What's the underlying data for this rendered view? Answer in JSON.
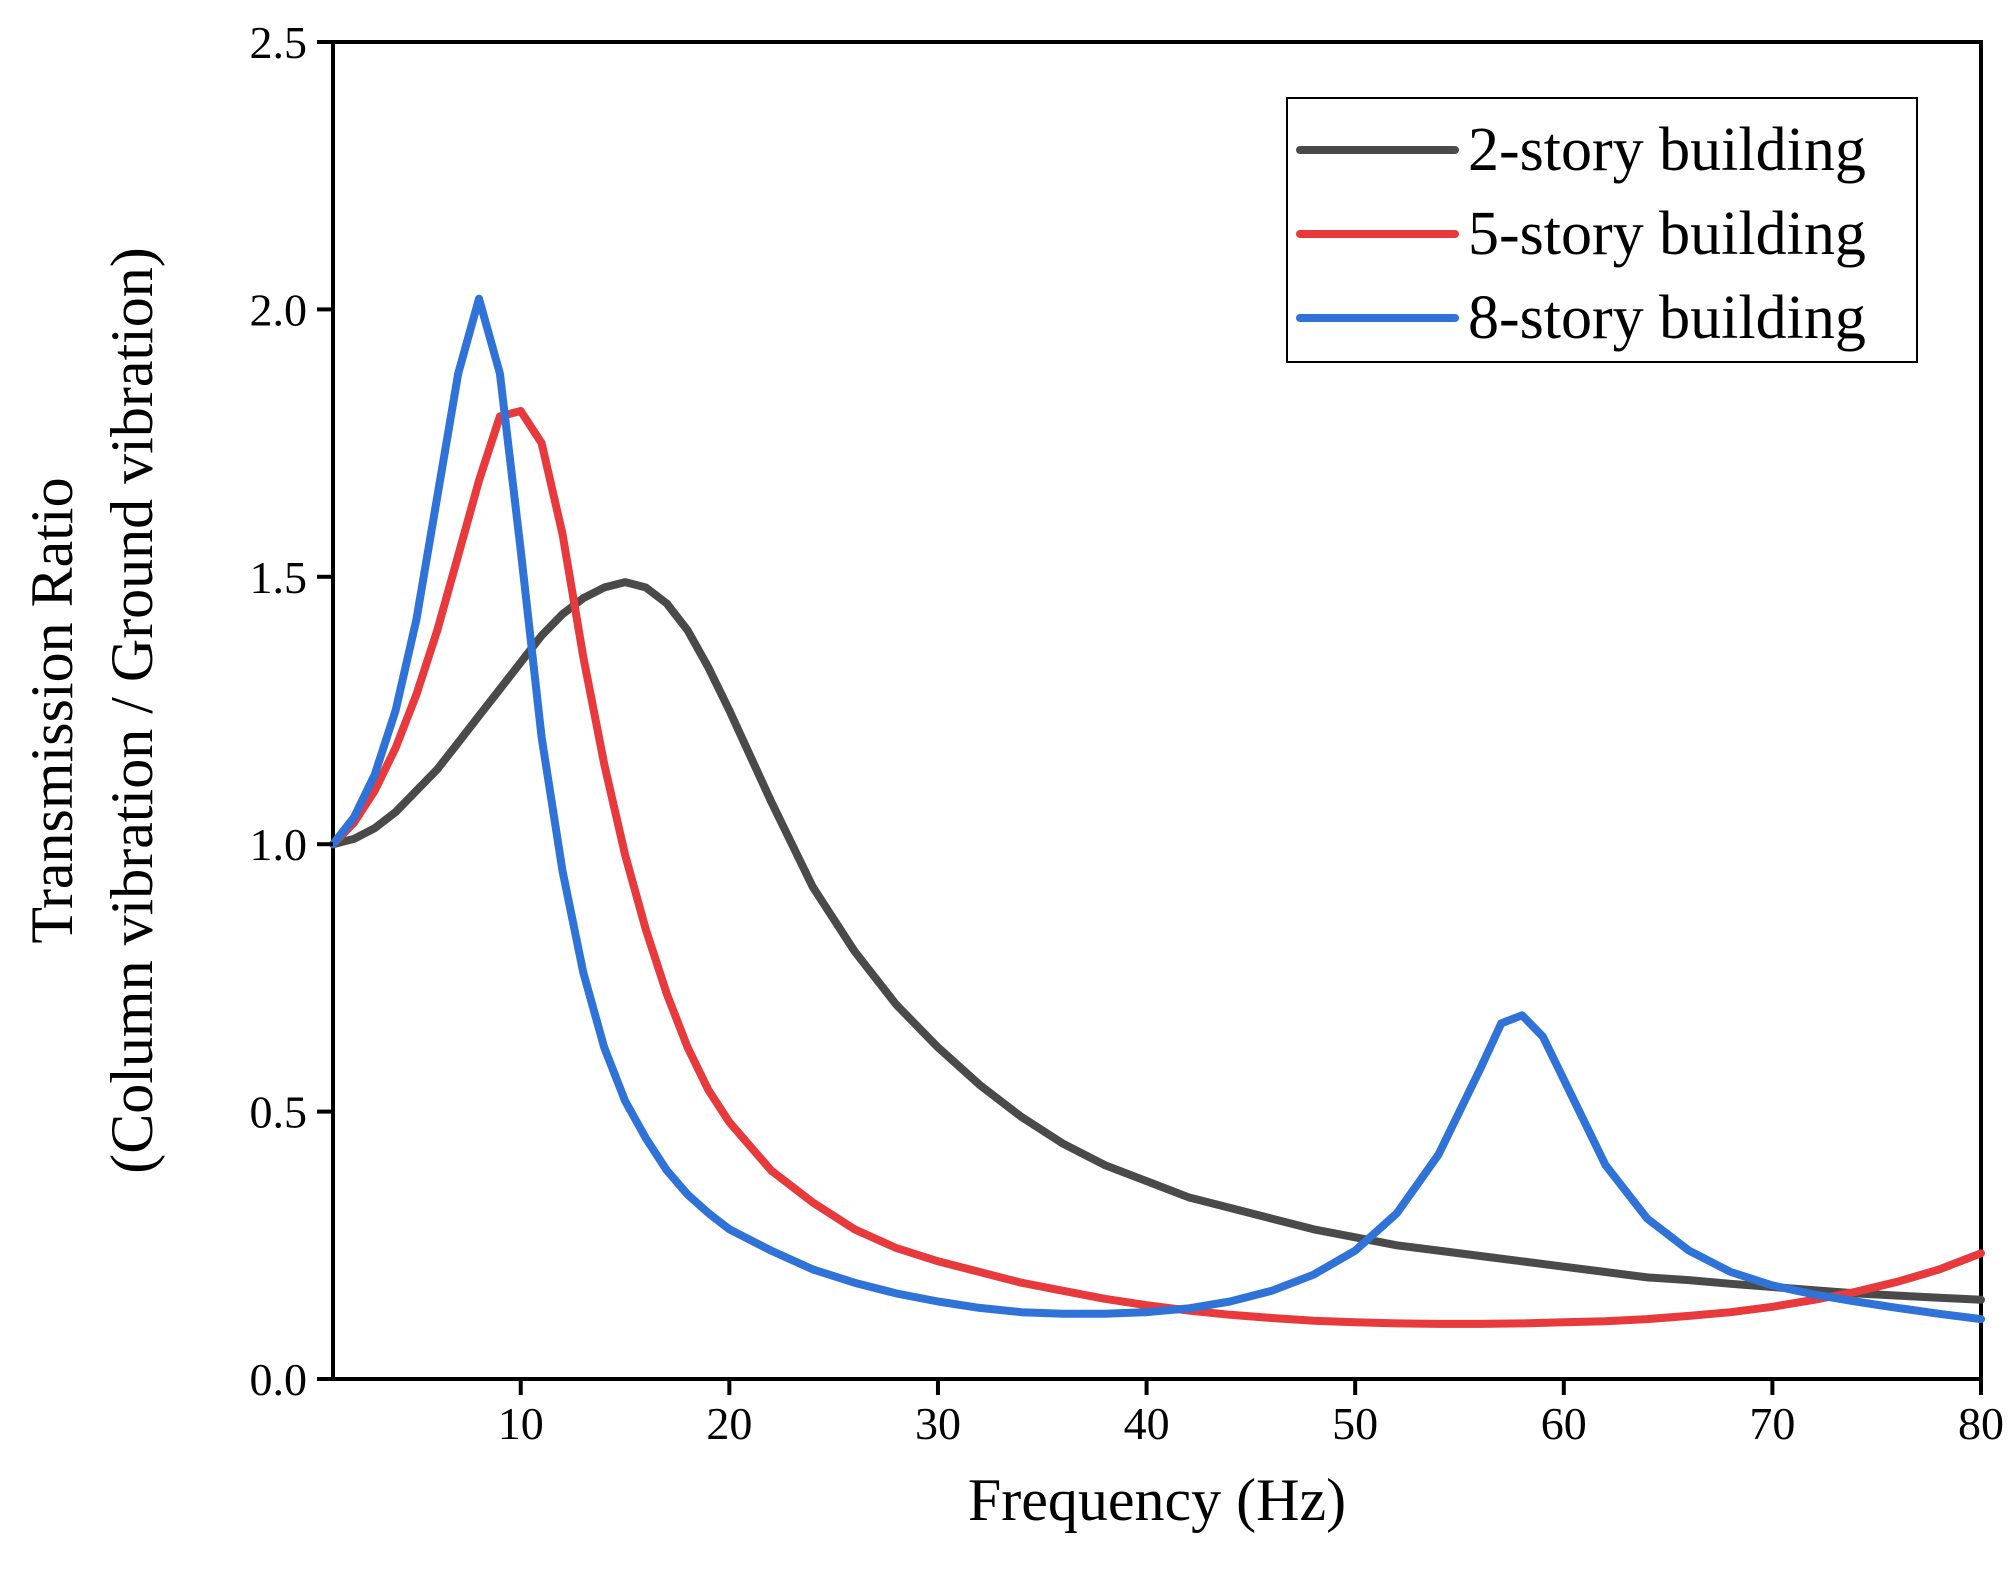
{
  "chart_data": {
    "type": "line",
    "title": "",
    "xlabel": "Frequency (Hz)",
    "ylabel_line1": "Transmission Ratio",
    "ylabel_line2": "(Column vibration / Ground vibration)",
    "xlim": [
      1,
      80
    ],
    "ylim": [
      0,
      2.5
    ],
    "xticks": [
      10,
      20,
      30,
      40,
      50,
      60,
      70,
      80
    ],
    "xtick_labels": [
      "10",
      "20",
      "30",
      "40",
      "50",
      "60",
      "70",
      "80"
    ],
    "yticks": [
      0,
      0.5,
      1.0,
      1.5,
      2.0,
      2.5
    ],
    "ytick_labels": [
      "0.0",
      "0.5",
      "1.0",
      "1.5",
      "2.0",
      "2.5"
    ],
    "grid": false,
    "legend_position": "top-right",
    "series": [
      {
        "name": "2-story building",
        "color": "#4a4a4a",
        "x": [
          1,
          2,
          3,
          4,
          5,
          6,
          7,
          8,
          9,
          10,
          11,
          12,
          13,
          14,
          15,
          16,
          17,
          18,
          19,
          20,
          22,
          24,
          26,
          28,
          30,
          32,
          34,
          36,
          38,
          40,
          42,
          44,
          46,
          48,
          50,
          52,
          54,
          56,
          58,
          60,
          62,
          64,
          66,
          68,
          70,
          72,
          74,
          76,
          78,
          80
        ],
        "y": [
          1.0,
          1.01,
          1.03,
          1.06,
          1.1,
          1.14,
          1.19,
          1.24,
          1.29,
          1.34,
          1.39,
          1.43,
          1.46,
          1.48,
          1.49,
          1.48,
          1.45,
          1.4,
          1.33,
          1.25,
          1.08,
          0.92,
          0.8,
          0.7,
          0.62,
          0.55,
          0.49,
          0.44,
          0.4,
          0.37,
          0.34,
          0.32,
          0.3,
          0.28,
          0.265,
          0.25,
          0.24,
          0.23,
          0.22,
          0.21,
          0.2,
          0.19,
          0.185,
          0.178,
          0.172,
          0.166,
          0.16,
          0.156,
          0.152,
          0.148
        ]
      },
      {
        "name": "5-story building",
        "color": "#e8393c",
        "x": [
          1,
          2,
          3,
          4,
          5,
          6,
          7,
          8,
          9,
          10,
          11,
          12,
          13,
          14,
          15,
          16,
          17,
          18,
          19,
          20,
          22,
          24,
          26,
          28,
          30,
          32,
          34,
          36,
          38,
          40,
          42,
          44,
          46,
          48,
          50,
          52,
          54,
          56,
          58,
          60,
          62,
          64,
          66,
          68,
          70,
          72,
          74,
          76,
          78,
          80
        ],
        "y": [
          1.0,
          1.04,
          1.1,
          1.18,
          1.28,
          1.4,
          1.54,
          1.68,
          1.8,
          1.81,
          1.75,
          1.58,
          1.35,
          1.15,
          0.98,
          0.84,
          0.72,
          0.62,
          0.54,
          0.48,
          0.39,
          0.33,
          0.28,
          0.245,
          0.22,
          0.2,
          0.18,
          0.165,
          0.15,
          0.138,
          0.128,
          0.12,
          0.114,
          0.109,
          0.106,
          0.104,
          0.103,
          0.103,
          0.104,
          0.106,
          0.108,
          0.112,
          0.118,
          0.125,
          0.135,
          0.148,
          0.163,
          0.182,
          0.205,
          0.235
        ]
      },
      {
        "name": "8-story building",
        "color": "#2f73d8",
        "x": [
          1,
          2,
          3,
          4,
          5,
          6,
          7,
          8,
          9,
          10,
          11,
          12,
          13,
          14,
          15,
          16,
          17,
          18,
          19,
          20,
          22,
          24,
          26,
          28,
          30,
          32,
          34,
          36,
          38,
          40,
          42,
          44,
          46,
          48,
          50,
          52,
          54,
          56,
          57,
          58,
          59,
          60,
          62,
          64,
          66,
          68,
          70,
          72,
          74,
          76,
          78,
          80
        ],
        "y": [
          1.0,
          1.05,
          1.13,
          1.25,
          1.42,
          1.65,
          1.88,
          2.02,
          1.88,
          1.55,
          1.2,
          0.95,
          0.76,
          0.62,
          0.52,
          0.45,
          0.39,
          0.345,
          0.31,
          0.28,
          0.24,
          0.205,
          0.18,
          0.16,
          0.145,
          0.133,
          0.125,
          0.122,
          0.122,
          0.125,
          0.132,
          0.145,
          0.165,
          0.195,
          0.24,
          0.31,
          0.42,
          0.58,
          0.665,
          0.68,
          0.64,
          0.56,
          0.4,
          0.3,
          0.24,
          0.2,
          0.175,
          0.158,
          0.145,
          0.133,
          0.122,
          0.112
        ]
      }
    ]
  }
}
